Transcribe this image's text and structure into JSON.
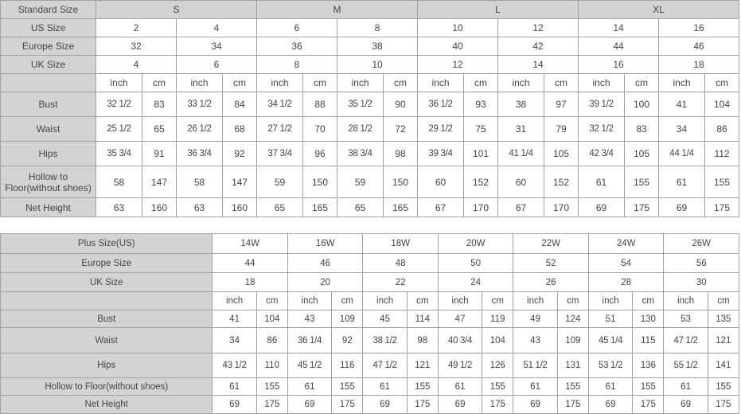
{
  "standard_table": {
    "header_label": "Standard Size",
    "groups": [
      "S",
      "M",
      "L",
      "XL"
    ],
    "rows": [
      {
        "label": "US Size",
        "values": [
          "2",
          "4",
          "6",
          "8",
          "10",
          "12",
          "14",
          "16"
        ]
      },
      {
        "label": "Europe Size",
        "values": [
          "32",
          "34",
          "36",
          "38",
          "40",
          "42",
          "44",
          "46"
        ]
      },
      {
        "label": "UK Size",
        "values": [
          "4",
          "6",
          "8",
          "10",
          "12",
          "14",
          "16",
          "18"
        ]
      }
    ],
    "unit_row_label": "",
    "units": [
      "inch",
      "cm"
    ],
    "measurements": [
      {
        "label": "Bust",
        "values": [
          "32 1/2",
          "83",
          "33 1/2",
          "84",
          "34 1/2",
          "88",
          "35 1/2",
          "90",
          "36 1/2",
          "93",
          "38",
          "97",
          "39 1/2",
          "100",
          "41",
          "104"
        ]
      },
      {
        "label": "Waist",
        "values": [
          "25 1/2",
          "65",
          "26 1/2",
          "68",
          "27 1/2",
          "70",
          "28 1/2",
          "72",
          "29 1/2",
          "75",
          "31",
          "79",
          "32 1/2",
          "83",
          "34",
          "86"
        ]
      },
      {
        "label": "Hips",
        "values": [
          "35 3/4",
          "91",
          "36 3/4",
          "92",
          "37 3/4",
          "96",
          "38 3/4",
          "98",
          "39 3/4",
          "101",
          "41 1/4",
          "105",
          "42 3/4",
          "105",
          "44 1/4",
          "112"
        ]
      },
      {
        "label": "Hollow to Floor(without shoes)",
        "values": [
          "58",
          "147",
          "58",
          "147",
          "59",
          "150",
          "59",
          "150",
          "60",
          "152",
          "60",
          "152",
          "61",
          "155",
          "61",
          "155"
        ]
      },
      {
        "label": "Net Height",
        "values": [
          "63",
          "160",
          "63",
          "160",
          "65",
          "165",
          "65",
          "165",
          "67",
          "170",
          "67",
          "170",
          "69",
          "175",
          "69",
          "175"
        ]
      }
    ]
  },
  "plus_table": {
    "rows": [
      {
        "label": "Plus Size(US)",
        "values": [
          "14W",
          "16W",
          "18W",
          "20W",
          "22W",
          "24W",
          "26W"
        ]
      },
      {
        "label": "Europe Size",
        "values": [
          "44",
          "46",
          "48",
          "50",
          "52",
          "54",
          "56"
        ]
      },
      {
        "label": "UK Size",
        "values": [
          "18",
          "20",
          "22",
          "24",
          "26",
          "28",
          "30"
        ]
      }
    ],
    "unit_row_label": "",
    "units": [
      "inch",
      "cm"
    ],
    "measurements": [
      {
        "label": "Bust",
        "values": [
          "41",
          "104",
          "43",
          "109",
          "45",
          "114",
          "47",
          "119",
          "49",
          "124",
          "51",
          "130",
          "53",
          "135"
        ]
      },
      {
        "label": "Waist",
        "values": [
          "34",
          "86",
          "36 1/4",
          "92",
          "38 1/2",
          "98",
          "40 3/4",
          "104",
          "43",
          "109",
          "45 1/4",
          "115",
          "47 1/2",
          "121"
        ]
      },
      {
        "label": "Hips",
        "values": [
          "43 1/2",
          "110",
          "45 1/2",
          "116",
          "47 1/2",
          "121",
          "49 1/2",
          "126",
          "51 1/2",
          "131",
          "53 1/2",
          "136",
          "55 1/2",
          "141"
        ]
      },
      {
        "label": "Hollow to Floor(without shoes)",
        "values": [
          "61",
          "155",
          "61",
          "155",
          "61",
          "155",
          "61",
          "155",
          "61",
          "155",
          "61",
          "155",
          "61",
          "155"
        ]
      },
      {
        "label": "Net Height",
        "values": [
          "69",
          "175",
          "69",
          "175",
          "69",
          "175",
          "69",
          "175",
          "69",
          "175",
          "69",
          "175",
          "69",
          "175"
        ]
      }
    ]
  }
}
